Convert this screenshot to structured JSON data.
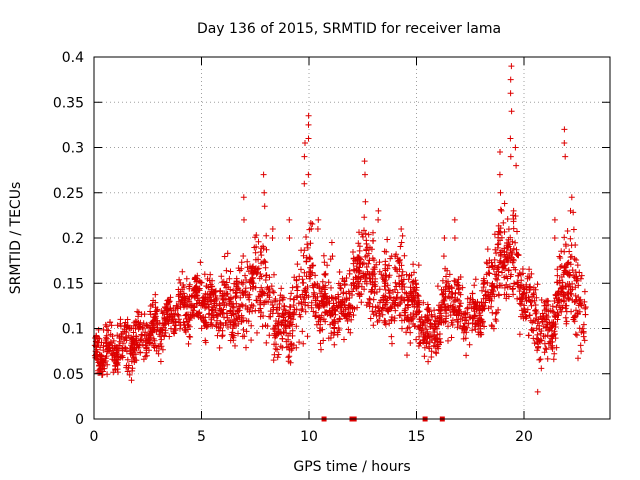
{
  "chart_data": {
    "type": "scatter",
    "title": "Day 136 of 2015, SRMTID for receiver lama",
    "xlabel": "GPS time / hours",
    "ylabel": "SRMTID / TECUs",
    "xlim": [
      0,
      24
    ],
    "ylim": [
      0,
      0.4
    ],
    "xticks": [
      0,
      5,
      10,
      15,
      20
    ],
    "xtick_labels": [
      "0",
      "5",
      "10",
      "15",
      "20"
    ],
    "yticks": [
      0,
      0.05,
      0.1,
      0.15,
      0.2,
      0.25,
      0.3,
      0.35,
      0.4
    ],
    "ytick_labels": [
      "0",
      "0.05",
      "0.1",
      "0.15",
      "0.2",
      "0.25",
      "0.3",
      "0.35",
      "0.4"
    ],
    "grid": true,
    "marker": "+",
    "color": "#dd0000",
    "envelope": {
      "x": [
        0,
        1,
        2,
        3,
        4,
        4.5,
        5,
        6,
        7,
        7.5,
        8,
        8.5,
        9,
        9.5,
        9.8,
        10,
        10.3,
        10.8,
        11.5,
        12,
        12.5,
        13,
        13.5,
        14,
        14.5,
        15,
        15.5,
        16,
        16.5,
        17,
        17.5,
        18,
        18.5,
        19,
        19.3,
        19.6,
        20,
        20.5,
        21,
        21.5,
        22,
        22.5,
        23
      ],
      "low": [
        0.05,
        0.04,
        0.05,
        0.07,
        0.08,
        0.09,
        0.09,
        0.07,
        0.07,
        0.08,
        0.06,
        0.05,
        0.06,
        0.07,
        0.08,
        0.09,
        0.07,
        0.07,
        0.08,
        0.1,
        0.11,
        0.08,
        0.07,
        0.08,
        0.07,
        0.08,
        0.05,
        0.06,
        0.08,
        0.07,
        0.08,
        0.08,
        0.09,
        0.1,
        0.1,
        0.1,
        0.09,
        0.06,
        0.05,
        0.07,
        0.09,
        0.06,
        0.04
      ],
      "high": [
        0.1,
        0.11,
        0.12,
        0.13,
        0.16,
        0.17,
        0.17,
        0.17,
        0.19,
        0.22,
        0.23,
        0.17,
        0.14,
        0.2,
        0.23,
        0.25,
        0.2,
        0.19,
        0.15,
        0.19,
        0.24,
        0.21,
        0.2,
        0.22,
        0.2,
        0.17,
        0.13,
        0.15,
        0.2,
        0.16,
        0.15,
        0.16,
        0.22,
        0.24,
        0.27,
        0.25,
        0.19,
        0.17,
        0.14,
        0.17,
        0.23,
        0.22,
        0.13
      ]
    },
    "spikes": [
      {
        "x": 7.0,
        "y": [
          0.22,
          0.245
        ]
      },
      {
        "x": 7.9,
        "y": [
          0.25,
          0.27,
          0.235
        ]
      },
      {
        "x": 8.3,
        "y": [
          0.21,
          0.2
        ]
      },
      {
        "x": 9.1,
        "y": [
          0.2,
          0.22
        ]
      },
      {
        "x": 9.8,
        "y": [
          0.26,
          0.29,
          0.305
        ]
      },
      {
        "x": 10.0,
        "y": [
          0.31,
          0.325,
          0.335,
          0.27
        ]
      },
      {
        "x": 10.4,
        "y": [
          0.22,
          0.21
        ]
      },
      {
        "x": 11.1,
        "y": [
          0.195,
          0.18
        ]
      },
      {
        "x": 12.6,
        "y": [
          0.27,
          0.285,
          0.24
        ]
      },
      {
        "x": 13.2,
        "y": [
          0.23,
          0.22
        ]
      },
      {
        "x": 14.3,
        "y": [
          0.21,
          0.195
        ]
      },
      {
        "x": 15.1,
        "y": [
          0.17
        ]
      },
      {
        "x": 16.3,
        "y": [
          0.2,
          0.18
        ]
      },
      {
        "x": 16.8,
        "y": [
          0.22,
          0.2
        ]
      },
      {
        "x": 18.9,
        "y": [
          0.27,
          0.295,
          0.25
        ]
      },
      {
        "x": 19.4,
        "y": [
          0.36,
          0.375,
          0.39,
          0.34,
          0.31,
          0.29
        ]
      },
      {
        "x": 19.6,
        "y": [
          0.28,
          0.3
        ]
      },
      {
        "x": 21.4,
        "y": [
          0.22,
          0.2
        ]
      },
      {
        "x": 21.9,
        "y": [
          0.29,
          0.305,
          0.32
        ]
      },
      {
        "x": 22.2,
        "y": [
          0.245,
          0.23
        ]
      },
      {
        "x": 20.6,
        "y": [
          0.03
        ]
      }
    ],
    "zero_points": [
      10.7,
      12.0,
      12.1,
      15.4,
      16.2
    ]
  }
}
